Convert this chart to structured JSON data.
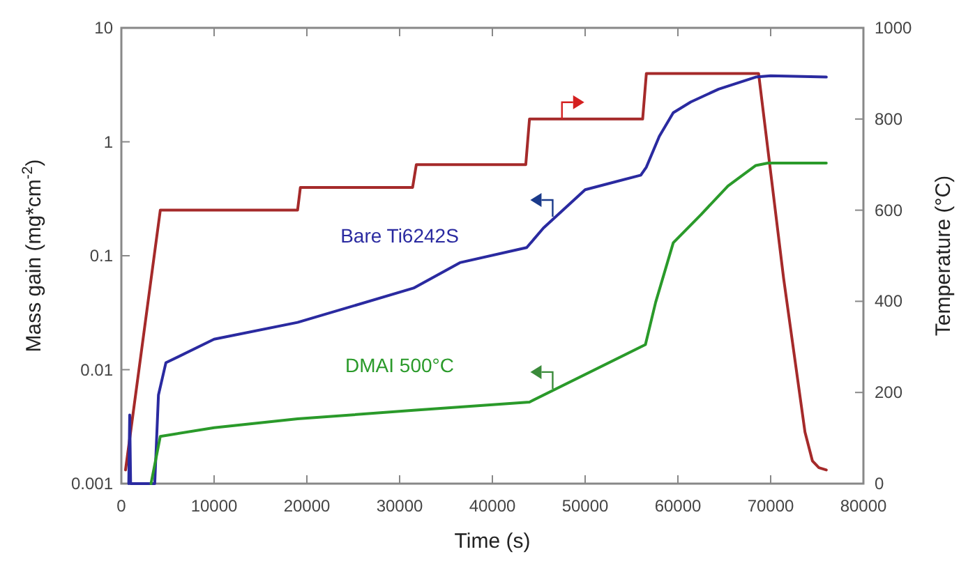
{
  "chart_data": {
    "type": "line",
    "xlabel": "Time (s)",
    "ylabel": "Mass gain (mg*cm$^{-2}$)",
    "y2label": "Temperature (°C)",
    "xlim": [
      0,
      80000
    ],
    "xticks": [
      0,
      10000,
      20000,
      30000,
      40000,
      50000,
      60000,
      70000,
      80000
    ],
    "ylim": [
      0.001,
      10
    ],
    "yticks": [
      0.001,
      0.01,
      0.1,
      1,
      10
    ],
    "log": true,
    "y2lim": [
      0,
      1000
    ],
    "y2ticks": [
      0,
      200,
      400,
      600,
      800,
      1000
    ],
    "grid": false,
    "marker": "none",
    "line_style": "solid",
    "series": [
      {
        "color": "#a52a2a",
        "axis": "y2",
        "x": [
          450,
          4200,
          19000,
          19300,
          31400,
          31800,
          43600,
          44000,
          56200,
          56600,
          68700,
          71400,
          73700,
          74500,
          75200,
          76000
        ],
        "values": [
          30,
          600,
          600,
          650,
          650,
          700,
          700,
          800,
          800,
          900,
          900,
          450,
          113,
          50,
          35,
          30
        ]
      },
      {
        "name": "Bare Ti6242S",
        "color": "#2a2aa0",
        "x": [
          800,
          900,
          1000,
          3600,
          4000,
          4800,
          10000,
          19000,
          31500,
          36500,
          43700,
          45500,
          50000,
          56000,
          56600,
          58000,
          59500,
          61400,
          64400,
          68400,
          70000,
          76000
        ],
        "values": [
          0.001,
          0.004,
          0.001,
          0.001,
          0.006,
          0.0115,
          0.0185,
          0.026,
          0.052,
          0.087,
          0.118,
          0.175,
          0.38,
          0.51,
          0.6,
          1.12,
          1.8,
          2.24,
          2.9,
          3.7,
          3.8,
          3.7
        ]
      },
      {
        "name": "DMAI 500°C",
        "color": "#2a9a2a",
        "x": [
          3200,
          4200,
          10000,
          19000,
          31500,
          44000,
          56500,
          57600,
          59500,
          62500,
          65400,
          68400,
          69700,
          76000
        ],
        "values": [
          0.001,
          0.0026,
          0.0031,
          0.0037,
          0.0044,
          0.0052,
          0.0166,
          0.039,
          0.13,
          0.23,
          0.41,
          0.62,
          0.65,
          0.65
        ]
      }
    ]
  }
}
